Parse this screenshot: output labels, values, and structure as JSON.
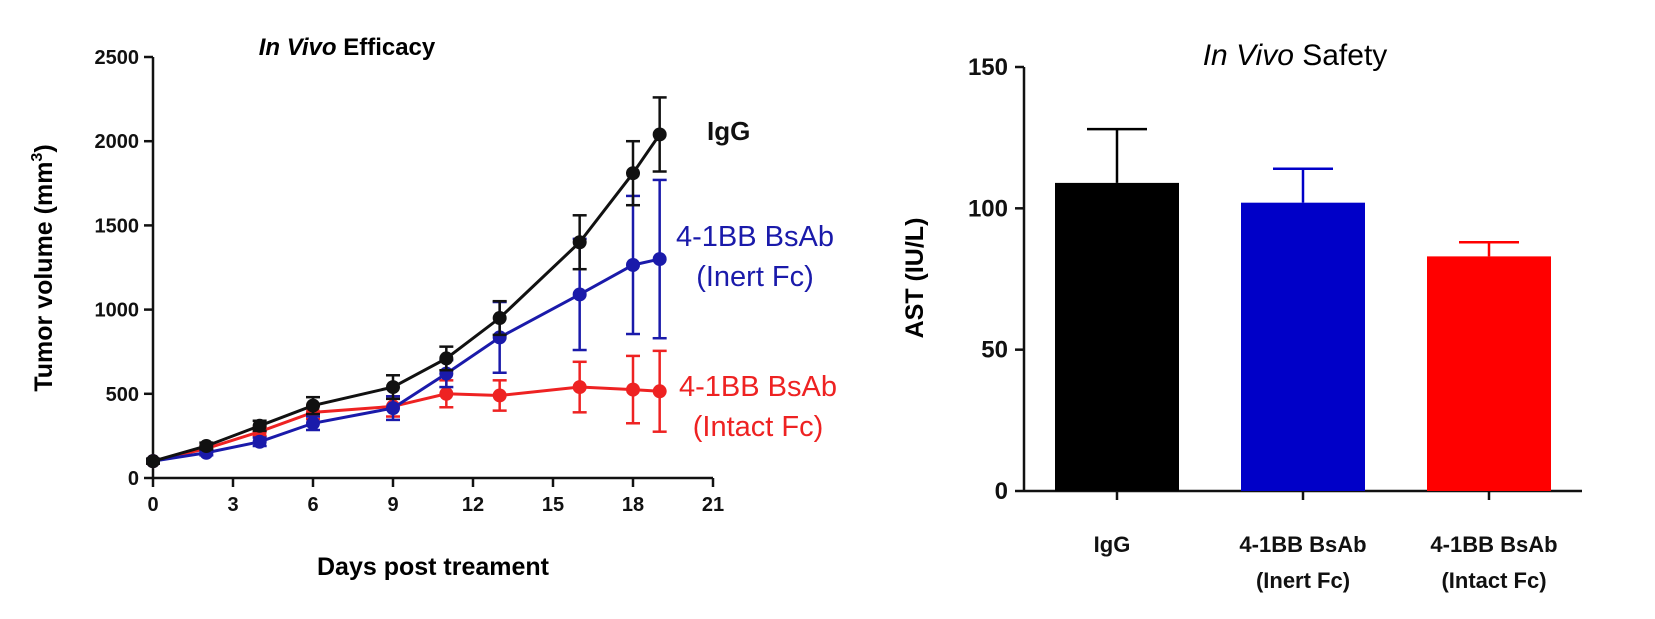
{
  "chart_data": [
    {
      "type": "line",
      "title_italic": "In Vivo",
      "title_rest": " Efficacy",
      "xlabel": "Days post treament",
      "ylabel": "Tumor volume (mm",
      "ylabel_sup": "3",
      "ylabel_close": ")",
      "xlim": [
        0,
        21
      ],
      "ylim": [
        0,
        2500
      ],
      "xticks": [
        "0",
        "3",
        "6",
        "9",
        "12",
        "15",
        "18",
        "21"
      ],
      "yticks": [
        "0",
        "500",
        "1000",
        "1500",
        "2000",
        "2500"
      ],
      "x": [
        0,
        2,
        4,
        6,
        9,
        11,
        13,
        16,
        18,
        19
      ],
      "series": [
        {
          "name": "IgG",
          "label_lines": [
            "IgG"
          ],
          "color": "#111111",
          "values": [
            100,
            190,
            310,
            430,
            540,
            710,
            950,
            1400,
            1810,
            2040
          ],
          "errors": [
            15,
            20,
            30,
            50,
            70,
            70,
            100,
            160,
            190,
            220
          ]
        },
        {
          "name": "4-1BB BsAb (Inert Fc)",
          "label_lines": [
            "4-1BB BsAb",
            "(Inert Fc)"
          ],
          "color": "#1a1aaa",
          "values": [
            100,
            150,
            215,
            325,
            415,
            620,
            835,
            1090,
            1265,
            1300
          ],
          "errors": [
            10,
            15,
            25,
            40,
            70,
            80,
            210,
            330,
            410,
            470
          ]
        },
        {
          "name": "4-1BB BsAb (Intact Fc)",
          "label_lines": [
            "4-1BB BsAb",
            "(Intact Fc)"
          ],
          "color": "#ee2222",
          "values": [
            100,
            175,
            275,
            390,
            425,
            500,
            490,
            540,
            525,
            515
          ],
          "errors": [
            10,
            15,
            25,
            40,
            60,
            80,
            90,
            150,
            200,
            240
          ]
        }
      ]
    },
    {
      "type": "bar",
      "title_italic": "In Vivo",
      "title_rest": " Safety",
      "ylabel": "AST (IU/L)",
      "ylim": [
        0,
        150
      ],
      "yticks": [
        "0",
        "50",
        "100",
        "150"
      ],
      "categories": [
        "IgG",
        "4-1BB BsAb (Inert Fc)",
        "4-1BB BsAb (Intact Fc)"
      ],
      "category_lines": [
        [
          "IgG"
        ],
        [
          "4-1BB BsAb",
          "(Inert Fc)"
        ],
        [
          "4-1BB BsAb",
          "(Intact Fc)"
        ]
      ],
      "values": [
        109,
        102,
        83
      ],
      "errors": [
        19,
        12,
        5
      ],
      "colors": [
        "#000000",
        "#0000c8",
        "#ff0000"
      ]
    }
  ]
}
